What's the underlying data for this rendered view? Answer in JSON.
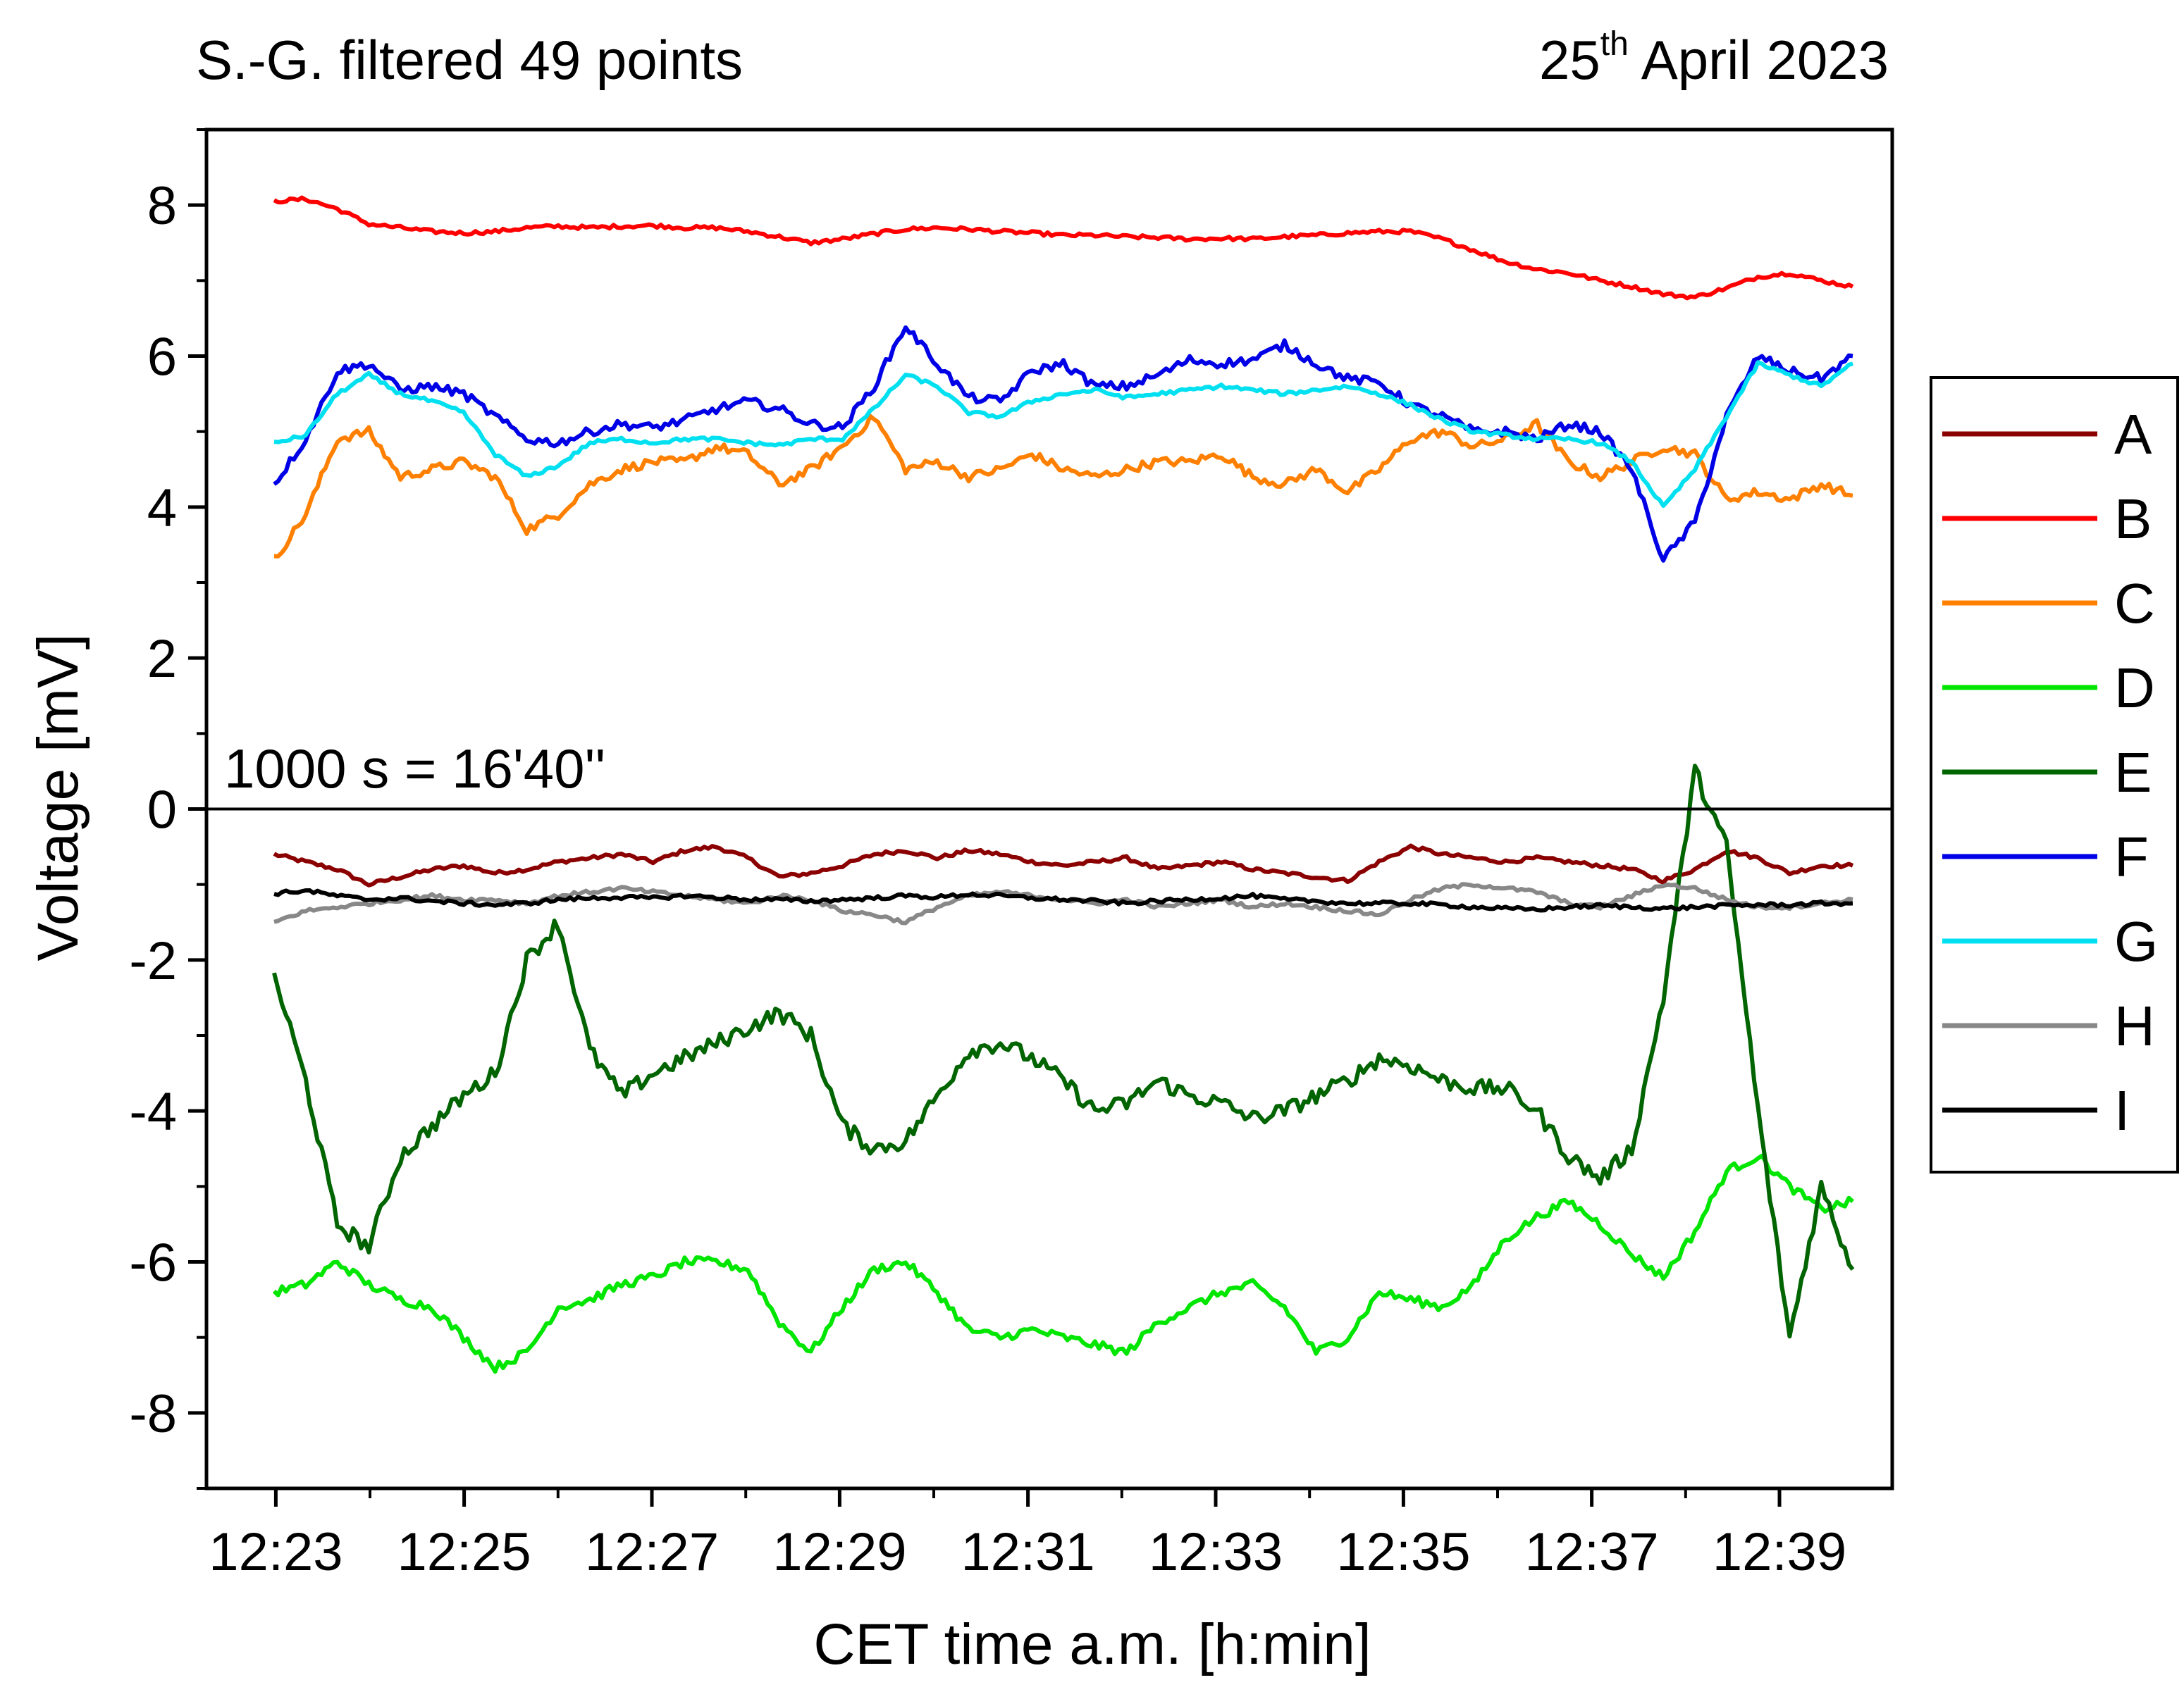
{
  "chart_data": {
    "type": "line",
    "title": "S.-G. filtered 49 points",
    "date": {
      "day": "25",
      "suffix": "th",
      "rest": "April 2023"
    },
    "annotation": "1000 s = 16'40''",
    "xlabel": "CET time a.m. [h:min]",
    "ylabel": "Voltage [mV]",
    "xlim": [
      12.371,
      12.67
    ],
    "ylim": [
      -9,
      9
    ],
    "x_ticks": [
      {
        "v": 12.3833,
        "label": "12:23"
      },
      {
        "v": 12.4167,
        "label": "12:25"
      },
      {
        "v": 12.45,
        "label": "12:27"
      },
      {
        "v": 12.4833,
        "label": "12:29"
      },
      {
        "v": 12.5167,
        "label": "12:31"
      },
      {
        "v": 12.55,
        "label": "12:33"
      },
      {
        "v": 12.5833,
        "label": "12:35"
      },
      {
        "v": 12.6167,
        "label": "12:37"
      },
      {
        "v": 12.65,
        "label": "12:39"
      }
    ],
    "y_ticks": [
      {
        "v": 8,
        "label": "8"
      },
      {
        "v": 6,
        "label": "6"
      },
      {
        "v": 4,
        "label": "4"
      },
      {
        "v": 2,
        "label": "2"
      },
      {
        "v": 0,
        "label": "0"
      },
      {
        "v": -2,
        "label": "-2"
      },
      {
        "v": -4,
        "label": "-4"
      },
      {
        "v": -6,
        "label": "-6"
      },
      {
        "v": -8,
        "label": "-8"
      }
    ],
    "x": [
      12.383,
      12.3886,
      12.3942,
      12.3998,
      12.4054,
      12.411,
      12.4166,
      12.4222,
      12.4278,
      12.4334,
      12.439,
      12.4446,
      12.4502,
      12.4558,
      12.4614,
      12.467,
      12.4726,
      12.4782,
      12.4838,
      12.4894,
      12.495,
      12.5006,
      12.5062,
      12.5118,
      12.5174,
      12.523,
      12.5286,
      12.5342,
      12.5398,
      12.5454,
      12.551,
      12.5566,
      12.5622,
      12.5678,
      12.5734,
      12.579,
      12.5846,
      12.5902,
      12.5958,
      12.6014,
      12.607,
      12.6126,
      12.6182,
      12.6238,
      12.6294,
      12.635,
      12.6406,
      12.6462,
      12.6518,
      12.6574,
      12.663
    ],
    "series": [
      {
        "name": "A",
        "color": "#8b0000",
        "values": [
          -0.6,
          -0.7,
          -0.8,
          -1.0,
          -0.9,
          -0.8,
          -0.75,
          -0.85,
          -0.8,
          -0.7,
          -0.65,
          -0.6,
          -0.7,
          -0.55,
          -0.5,
          -0.65,
          -0.9,
          -0.85,
          -0.75,
          -0.6,
          -0.55,
          -0.65,
          -0.55,
          -0.6,
          -0.7,
          -0.75,
          -0.7,
          -0.65,
          -0.8,
          -0.75,
          -0.7,
          -0.8,
          -0.85,
          -0.9,
          -0.95,
          -0.7,
          -0.5,
          -0.6,
          -0.65,
          -0.7,
          -0.65,
          -0.7,
          -0.75,
          -0.8,
          -0.95,
          -0.8,
          -0.55,
          -0.65,
          -0.85,
          -0.75,
          -0.75
        ]
      },
      {
        "name": "B",
        "color": "#ff0000",
        "values": [
          8.05,
          8.08,
          7.95,
          7.75,
          7.7,
          7.65,
          7.63,
          7.65,
          7.7,
          7.72,
          7.7,
          7.72,
          7.73,
          7.7,
          7.7,
          7.65,
          7.58,
          7.5,
          7.55,
          7.62,
          7.68,
          7.7,
          7.68,
          7.65,
          7.63,
          7.6,
          7.6,
          7.58,
          7.57,
          7.55,
          7.56,
          7.55,
          7.58,
          7.6,
          7.63,
          7.65,
          7.65,
          7.55,
          7.4,
          7.25,
          7.15,
          7.1,
          7.0,
          6.92,
          6.82,
          6.78,
          6.9,
          7.05,
          7.1,
          7.0,
          6.92
        ]
      },
      {
        "name": "C",
        "color": "#ff8000",
        "values": [
          3.3,
          3.9,
          4.9,
          5.0,
          4.4,
          4.5,
          4.6,
          4.4,
          3.7,
          3.9,
          4.3,
          4.5,
          4.6,
          4.6,
          4.8,
          4.7,
          4.3,
          4.5,
          4.8,
          5.2,
          4.5,
          4.6,
          4.4,
          4.5,
          4.7,
          4.5,
          4.4,
          4.5,
          4.6,
          4.6,
          4.7,
          4.4,
          4.3,
          4.5,
          4.2,
          4.5,
          4.9,
          5.0,
          4.8,
          4.9,
          5.1,
          4.6,
          4.4,
          4.6,
          4.8,
          4.7,
          4.1,
          4.2,
          4.1,
          4.3,
          4.15
        ]
      },
      {
        "name": "D",
        "color": "#00e600",
        "values": [
          -6.4,
          -6.3,
          -6.0,
          -6.3,
          -6.5,
          -6.6,
          -7.0,
          -7.4,
          -7.2,
          -6.6,
          -6.5,
          -6.3,
          -6.2,
          -6.0,
          -6.0,
          -6.1,
          -6.8,
          -7.2,
          -6.6,
          -6.1,
          -6.0,
          -6.4,
          -6.9,
          -7.0,
          -6.9,
          -7.0,
          -7.1,
          -7.2,
          -6.8,
          -6.6,
          -6.4,
          -6.3,
          -6.6,
          -7.2,
          -7.0,
          -6.4,
          -6.5,
          -6.6,
          -6.3,
          -5.7,
          -5.4,
          -5.2,
          -5.5,
          -5.9,
          -6.2,
          -5.6,
          -4.8,
          -4.6,
          -5.0,
          -5.3,
          -5.2
        ]
      },
      {
        "name": "E",
        "color": "#006400",
        "values": [
          -2.2,
          -3.6,
          -5.5,
          -5.8,
          -4.6,
          -4.2,
          -3.8,
          -3.5,
          -2.0,
          -1.5,
          -3.2,
          -3.8,
          -3.5,
          -3.3,
          -3.1,
          -2.9,
          -2.7,
          -3.0,
          -4.2,
          -4.5,
          -4.4,
          -3.8,
          -3.2,
          -3.1,
          -3.3,
          -3.6,
          -4.0,
          -3.9,
          -3.6,
          -3.8,
          -3.9,
          -4.1,
          -4.0,
          -3.8,
          -3.6,
          -3.3,
          -3.4,
          -3.6,
          -3.7,
          -3.7,
          -4.0,
          -4.6,
          -4.9,
          -4.5,
          -2.5,
          0.5,
          -0.5,
          -4.0,
          -7.0,
          -5.0,
          -6.1
        ]
      },
      {
        "name": "F",
        "color": "#0000e6",
        "values": [
          4.3,
          4.9,
          5.8,
          5.9,
          5.55,
          5.6,
          5.5,
          5.2,
          4.9,
          4.85,
          5.0,
          5.1,
          5.05,
          5.15,
          5.3,
          5.4,
          5.3,
          5.1,
          5.05,
          5.6,
          6.4,
          5.9,
          5.45,
          5.4,
          5.8,
          5.9,
          5.6,
          5.6,
          5.75,
          5.95,
          5.9,
          5.95,
          6.15,
          5.9,
          5.7,
          5.65,
          5.35,
          5.2,
          5.0,
          5.0,
          4.9,
          5.1,
          5.0,
          4.5,
          3.3,
          3.8,
          5.2,
          6.0,
          5.8,
          5.7,
          6.0
        ]
      },
      {
        "name": "G",
        "color": "#00e0f0",
        "values": [
          4.85,
          4.95,
          5.5,
          5.75,
          5.5,
          5.4,
          5.25,
          4.7,
          4.4,
          4.55,
          4.85,
          4.9,
          4.85,
          4.9,
          4.9,
          4.85,
          4.82,
          4.9,
          4.9,
          5.3,
          5.75,
          5.6,
          5.25,
          5.2,
          5.4,
          5.5,
          5.55,
          5.45,
          5.5,
          5.55,
          5.6,
          5.55,
          5.5,
          5.55,
          5.6,
          5.5,
          5.35,
          5.15,
          5.0,
          4.95,
          4.9,
          4.9,
          4.85,
          4.6,
          4.0,
          4.5,
          5.2,
          5.9,
          5.75,
          5.6,
          5.9
        ]
      },
      {
        "name": "H",
        "color": "#888888",
        "values": [
          -1.5,
          -1.35,
          -1.3,
          -1.25,
          -1.2,
          -1.15,
          -1.2,
          -1.2,
          -1.25,
          -1.15,
          -1.1,
          -1.05,
          -1.1,
          -1.15,
          -1.2,
          -1.25,
          -1.15,
          -1.2,
          -1.35,
          -1.4,
          -1.5,
          -1.3,
          -1.15,
          -1.1,
          -1.15,
          -1.2,
          -1.25,
          -1.2,
          -1.3,
          -1.25,
          -1.2,
          -1.3,
          -1.25,
          -1.3,
          -1.35,
          -1.4,
          -1.2,
          -1.05,
          -1.0,
          -1.05,
          -1.1,
          -1.25,
          -1.3,
          -1.15,
          -1.0,
          -1.05,
          -1.2,
          -1.3,
          -1.3,
          -1.25,
          -1.2
        ]
      },
      {
        "name": "I",
        "color": "#000000",
        "values": [
          -1.12,
          -1.08,
          -1.15,
          -1.2,
          -1.18,
          -1.22,
          -1.25,
          -1.27,
          -1.25,
          -1.2,
          -1.18,
          -1.17,
          -1.18,
          -1.15,
          -1.17,
          -1.2,
          -1.2,
          -1.22,
          -1.2,
          -1.18,
          -1.15,
          -1.17,
          -1.13,
          -1.15,
          -1.18,
          -1.2,
          -1.22,
          -1.25,
          -1.22,
          -1.2,
          -1.18,
          -1.15,
          -1.2,
          -1.22,
          -1.25,
          -1.25,
          -1.25,
          -1.27,
          -1.3,
          -1.32,
          -1.33,
          -1.3,
          -1.28,
          -1.3,
          -1.32,
          -1.3,
          -1.28,
          -1.27,
          -1.27,
          -1.25,
          -1.25
        ]
      }
    ],
    "legend_position": "right",
    "grid": false
  }
}
